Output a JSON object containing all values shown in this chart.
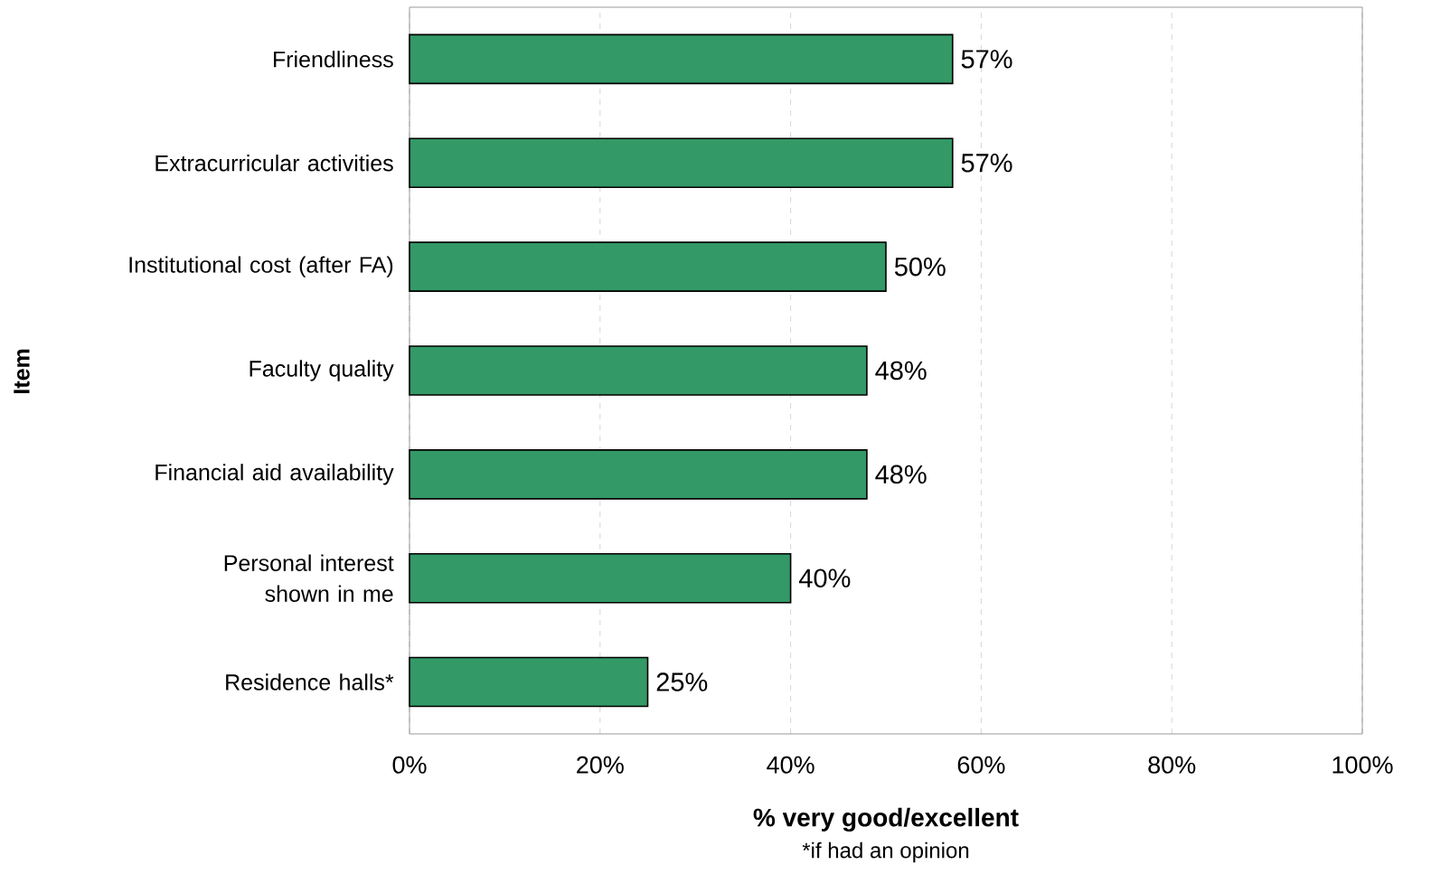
{
  "chart_data": {
    "type": "bar",
    "orientation": "horizontal",
    "categories": [
      "Friendliness",
      "Extracurricular activities",
      "Institutional cost (after FA)",
      "Faculty quality",
      "Financial aid availability",
      "Personal interest shown in me",
      "Residence halls*"
    ],
    "values": [
      57,
      57,
      50,
      48,
      48,
      40,
      25
    ],
    "value_labels": [
      "57%",
      "57%",
      "50%",
      "48%",
      "48%",
      "40%",
      "25%"
    ],
    "color": "#339966",
    "xlabel": "% very good/excellent",
    "ylabel": "Item",
    "annotations": [
      "*if had an opinion"
    ],
    "xlim": [
      0,
      100
    ],
    "xticks": [
      {
        "value": 0,
        "label": "0%"
      },
      {
        "value": 20,
        "label": "20%"
      },
      {
        "value": 40,
        "label": "40%"
      },
      {
        "value": 60,
        "label": "60%"
      },
      {
        "value": 80,
        "label": "80%"
      },
      {
        "value": 100,
        "label": "100%"
      }
    ],
    "grid": "x"
  }
}
